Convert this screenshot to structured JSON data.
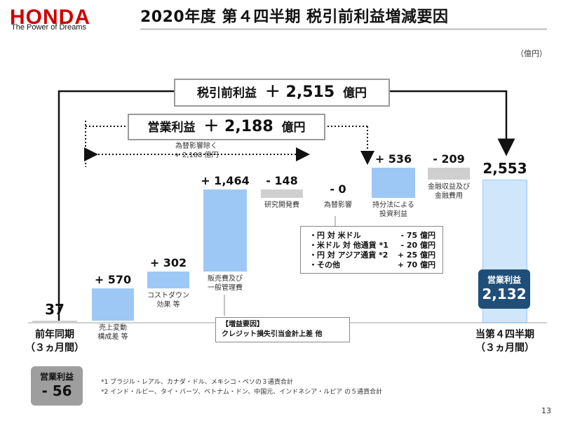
{
  "header": {
    "logo_word": "HONDA",
    "logo_tagline": "The Power of Dreams",
    "title": "2020年度 第４四半期 税引前利益増減要因"
  },
  "unit": "（億円）",
  "pretax_box": {
    "label": "税引前利益",
    "value": "＋ 2,515",
    "unit": "億円"
  },
  "operating_box": {
    "label": "営業利益",
    "value": "＋ 2,188",
    "unit": "億円"
  },
  "excl_fx": {
    "line1": "為替影響除く",
    "line2": "+ 2,188 億円"
  },
  "chart_data": {
    "type": "waterfall",
    "start": {
      "label": "前年同期",
      "sublabel": "（３ヵ月間）",
      "value": 37,
      "value_text": "37"
    },
    "end": {
      "label": "当第４四半期",
      "sublabel": "（３ヵ月間）",
      "value": 2553,
      "value_text": "2,553"
    },
    "steps": [
      {
        "label_lines": [
          "売上変動",
          "構成差 等"
        ],
        "value": 570,
        "value_text": "+ 570"
      },
      {
        "label_lines": [
          "コストダウン",
          "効果 等"
        ],
        "value": 302,
        "value_text": "+ 302"
      },
      {
        "label_lines": [
          "販売費及び",
          "一般管理費"
        ],
        "value": 1464,
        "value_text": "+ 1,464"
      },
      {
        "label_lines": [
          "研究開発費"
        ],
        "value": -148,
        "value_text": "- 148"
      },
      {
        "label_lines": [
          "為替影響"
        ],
        "value": 0,
        "value_text": "- 0"
      },
      {
        "label_lines": [
          "持分法による",
          "投資利益"
        ],
        "value": 536,
        "value_text": "+ 536"
      },
      {
        "label_lines": [
          "金融収益及び",
          "金融費用"
        ],
        "value": -209,
        "value_text": "- 209"
      }
    ],
    "colors": {
      "increase": "#9dc8f5",
      "decrease": "#cfcfcf",
      "total_fill": "#cfe6fb",
      "total_border": "#9dc8f5"
    }
  },
  "fx_breakdown": [
    {
      "label": "・円 対 米ドル",
      "value": "- 75 億円"
    },
    {
      "label": "・米ドル 対 他通貨 *1",
      "value": "- 20 億円"
    },
    {
      "label": "・円 対 アジア通貨 *2",
      "value": "+ 25 億円"
    },
    {
      "label": "・その他",
      "value": "+ 70 億円"
    }
  ],
  "sga_note": {
    "line1": "【増益要因】",
    "line2": "クレジット損失引当金計上差 他"
  },
  "badge_end": {
    "label": "営業利益",
    "value": "2,132"
  },
  "badge_start": {
    "label": "営業利益",
    "value": "- 56"
  },
  "notes": [
    "*1 ブラジル・レアル、カナダ・ドル、メキシコ・ペソの３通貨合計",
    "*2 インド・ルピー、タイ・バーツ、ベトナム・ドン、中国元、インドネシア・ルピア の５通貨合計"
  ],
  "page_number": "13"
}
